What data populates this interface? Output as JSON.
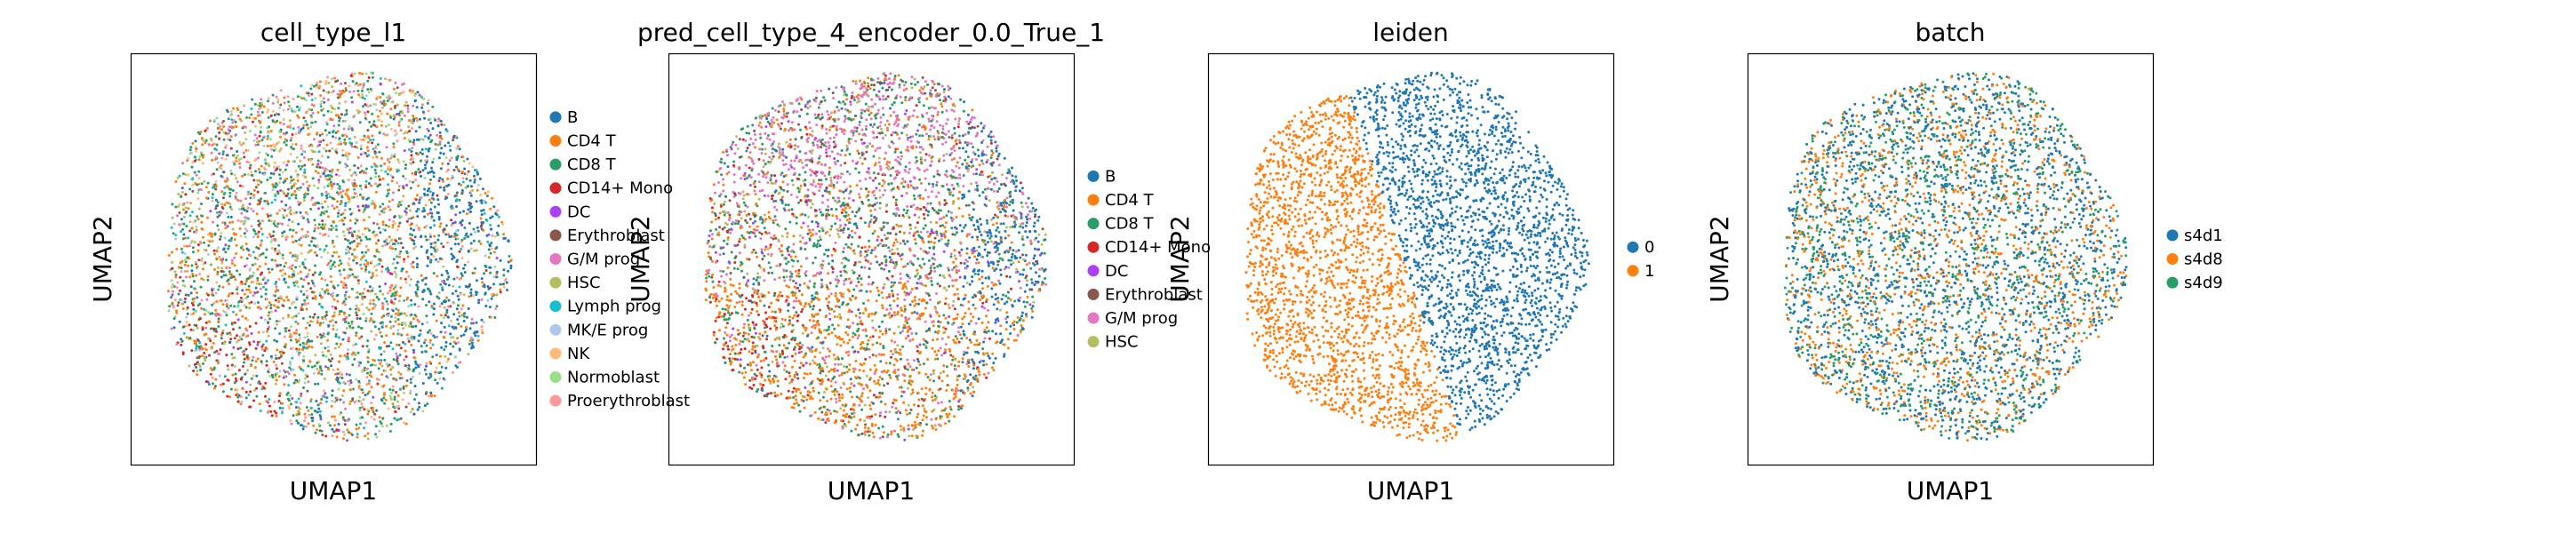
{
  "chart_data": [
    {
      "type": "scatter",
      "title": "cell_type_l1",
      "xlabel": "UMAP1",
      "ylabel": "UMAP2",
      "legend_position": "right",
      "grid": false,
      "ticks_shown": false,
      "series": [
        {
          "name": "B",
          "color": "#1f77b4"
        },
        {
          "name": "CD4 T",
          "color": "#ff7f0e"
        },
        {
          "name": "CD8 T",
          "color": "#279e68"
        },
        {
          "name": "CD14+ Mono",
          "color": "#d62728"
        },
        {
          "name": "DC",
          "color": "#aa40fc"
        },
        {
          "name": "Erythroblast",
          "color": "#8c564b"
        },
        {
          "name": "G/M prog",
          "color": "#e377c2"
        },
        {
          "name": "HSC",
          "color": "#b5bd61"
        },
        {
          "name": "Lymph prog",
          "color": "#17becf"
        },
        {
          "name": "MK/E prog",
          "color": "#aec7e8"
        },
        {
          "name": "NK",
          "color": "#ffbb78"
        },
        {
          "name": "Normoblast",
          "color": "#98df8a"
        },
        {
          "name": "Proerythroblast",
          "color": "#ff9896"
        }
      ]
    },
    {
      "type": "scatter",
      "title": "pred_cell_type_4_encoder_0.0_True_1",
      "xlabel": "UMAP1",
      "ylabel": "UMAP2",
      "legend_position": "right",
      "grid": false,
      "ticks_shown": false,
      "series": [
        {
          "name": "B",
          "color": "#1f77b4"
        },
        {
          "name": "CD4 T",
          "color": "#ff7f0e"
        },
        {
          "name": "CD8 T",
          "color": "#279e68"
        },
        {
          "name": "CD14+ Mono",
          "color": "#d62728"
        },
        {
          "name": "DC",
          "color": "#aa40fc"
        },
        {
          "name": "Erythroblast",
          "color": "#8c564b"
        },
        {
          "name": "G/M prog",
          "color": "#e377c2"
        },
        {
          "name": "HSC",
          "color": "#b5bd61"
        }
      ]
    },
    {
      "type": "scatter",
      "title": "leiden",
      "xlabel": "UMAP1",
      "ylabel": "UMAP2",
      "legend_position": "right",
      "grid": false,
      "ticks_shown": false,
      "series": [
        {
          "name": "0",
          "color": "#1f77b4"
        },
        {
          "name": "1",
          "color": "#ff7f0e"
        }
      ]
    },
    {
      "type": "scatter",
      "title": "batch",
      "xlabel": "UMAP1",
      "ylabel": "UMAP2",
      "legend_position": "right",
      "grid": false,
      "ticks_shown": false,
      "series": [
        {
          "name": "s4d1",
          "color": "#1f77b4"
        },
        {
          "name": "s4d8",
          "color": "#ff7f0e"
        },
        {
          "name": "s4d9",
          "color": "#279e68"
        }
      ]
    }
  ]
}
